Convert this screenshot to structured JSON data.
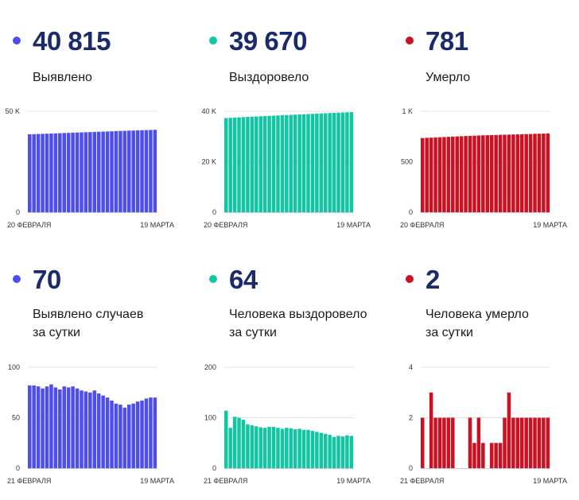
{
  "panels": [
    {
      "value": "40 815",
      "label_lines": [
        "Выявлено"
      ],
      "color": "#4d4df0"
    },
    {
      "value": "39 670",
      "label_lines": [
        "Выздоровело"
      ],
      "color": "#13c6a3"
    },
    {
      "value": "781",
      "label_lines": [
        "Умерло"
      ],
      "color": "#cc1122"
    },
    {
      "value": "70",
      "label_lines": [
        "Выявлено случаев",
        "за сутки"
      ],
      "color": "#4d4df0"
    },
    {
      "value": "64",
      "label_lines": [
        "Человека выздоровело",
        "за сутки"
      ],
      "color": "#13c6a3"
    },
    {
      "value": "2",
      "label_lines": [
        "Человека умерло",
        "за сутки"
      ],
      "color": "#cc1122"
    }
  ],
  "chart_data": [
    {
      "type": "bar",
      "color": "#4d4df0",
      "x_start_label": "20 ФЕВРАЛЯ",
      "x_end_label": "19 МАРТА",
      "ylim": [
        0,
        50000
      ],
      "yticks": [
        {
          "value": 0,
          "label": "0"
        },
        {
          "value": 50000,
          "label": "50 K"
        }
      ],
      "values": [
        38600,
        38680,
        38760,
        38840,
        38910,
        38990,
        39060,
        39150,
        39230,
        39300,
        39390,
        39470,
        39550,
        39630,
        39710,
        39790,
        39870,
        39950,
        40020,
        40100,
        40180,
        40260,
        40330,
        40410,
        40480,
        40560,
        40620,
        40690,
        40760,
        40815
      ]
    },
    {
      "type": "bar",
      "color": "#13c6a3",
      "x_start_label": "20 ФЕВРАЛЯ",
      "x_end_label": "19 МАРТА",
      "ylim": [
        0,
        40000
      ],
      "yticks": [
        {
          "value": 0,
          "label": "0"
        },
        {
          "value": 20000,
          "label": "20 K"
        },
        {
          "value": 40000,
          "label": "40 K"
        }
      ],
      "values": [
        37300,
        37400,
        37500,
        37600,
        37690,
        37780,
        37860,
        37940,
        38020,
        38100,
        38180,
        38260,
        38340,
        38420,
        38500,
        38580,
        38660,
        38740,
        38820,
        38900,
        38980,
        39060,
        39140,
        39220,
        39300,
        39380,
        39450,
        39520,
        39600,
        39670
      ]
    },
    {
      "type": "bar",
      "color": "#cc1122",
      "x_start_label": "20 ФЕВРАЛЯ",
      "x_end_label": "19 МАРТА",
      "ylim": [
        0,
        1000
      ],
      "yticks": [
        {
          "value": 0,
          "label": "0"
        },
        {
          "value": 500,
          "label": "500"
        },
        {
          "value": 1000,
          "label": "1 K"
        }
      ],
      "values": [
        735,
        737,
        739,
        741,
        743,
        745,
        747,
        749,
        751,
        753,
        755,
        756,
        758,
        760,
        762,
        763,
        764,
        765,
        767,
        768,
        769,
        770,
        771,
        773,
        774,
        775,
        777,
        778,
        779,
        781
      ]
    },
    {
      "type": "bar",
      "color": "#4d4df0",
      "x_start_label": "21 ФЕВРАЛЯ",
      "x_end_label": "19 МАРТА",
      "ylim": [
        0,
        100
      ],
      "yticks": [
        {
          "value": 0,
          "label": "0"
        },
        {
          "value": 50,
          "label": "50"
        },
        {
          "value": 100,
          "label": "100"
        }
      ],
      "values": [
        82,
        82,
        81,
        79,
        81,
        83,
        80,
        78,
        81,
        80,
        81,
        79,
        77,
        76,
        75,
        77,
        74,
        72,
        70,
        67,
        64,
        63,
        60,
        63,
        64,
        66,
        67,
        69,
        70,
        70
      ]
    },
    {
      "type": "bar",
      "color": "#13c6a3",
      "x_start_label": "21 ФЕВРАЛЯ",
      "x_end_label": "19 МАРТА",
      "ylim": [
        0,
        200
      ],
      "yticks": [
        {
          "value": 0,
          "label": "0"
        },
        {
          "value": 100,
          "label": "100"
        },
        {
          "value": 200,
          "label": "200"
        }
      ],
      "values": [
        114,
        80,
        102,
        100,
        96,
        87,
        85,
        83,
        81,
        80,
        82,
        82,
        80,
        78,
        80,
        79,
        77,
        78,
        76,
        76,
        74,
        72,
        70,
        68,
        66,
        62,
        64,
        63,
        65,
        64
      ]
    },
    {
      "type": "bar",
      "color": "#cc1122",
      "x_start_label": "21 ФЕВРАЛЯ",
      "x_end_label": "19 МАРТА",
      "ylim": [
        0,
        4
      ],
      "yticks": [
        {
          "value": 0,
          "label": "0"
        },
        {
          "value": 2,
          "label": "2"
        },
        {
          "value": 4,
          "label": "4"
        }
      ],
      "values": [
        2,
        0,
        3,
        2,
        2,
        2,
        2,
        2,
        0,
        0,
        0,
        2,
        1,
        2,
        1,
        0,
        1,
        1,
        1,
        2,
        3,
        2,
        2,
        2,
        2,
        2,
        2,
        2,
        2,
        2
      ]
    }
  ]
}
